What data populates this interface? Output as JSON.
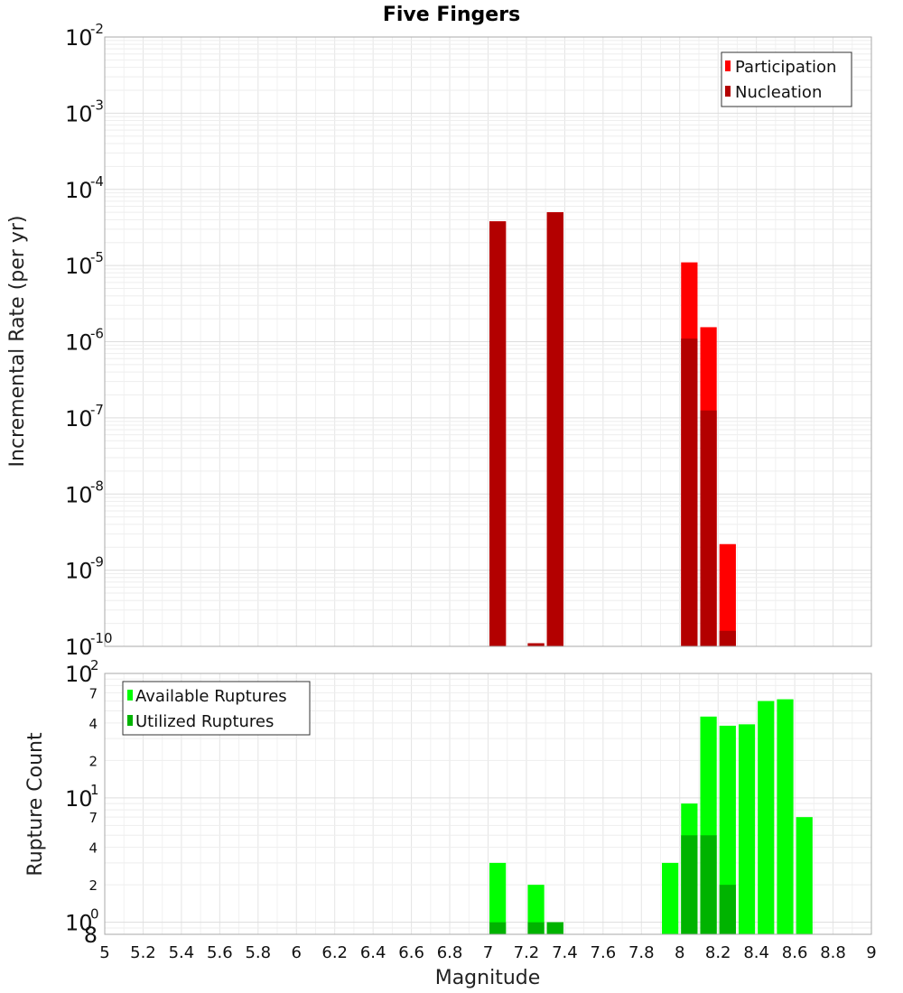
{
  "chart_title": "Five Fingers",
  "x_axis": {
    "label": "Magnitude",
    "range": [
      5,
      9
    ],
    "ticks": [
      5,
      5.2,
      5.4,
      5.6,
      5.8,
      6,
      6.2,
      6.4,
      6.6,
      6.8,
      7,
      7.2,
      7.4,
      7.6,
      7.8,
      8,
      8.2,
      8.4,
      8.6,
      8.8,
      9
    ],
    "tick_labels": [
      "5",
      "5.2",
      "5.4",
      "5.6",
      "5.8",
      "6",
      "6.2",
      "6.4",
      "6.6",
      "6.8",
      "7",
      "7.2",
      "7.4",
      "7.6",
      "7.8",
      "8",
      "8.2",
      "8.4",
      "8.6",
      "8.8",
      "9"
    ]
  },
  "chart_data": [
    {
      "type": "bar",
      "scale": "log",
      "ylabel": "Incremental Rate (per yr)",
      "ylim": [
        1e-10,
        0.01
      ],
      "grid": true,
      "legend_position": "top-right",
      "y_tick_exponents": [
        "-10",
        "-9",
        "-8",
        "-7",
        "-6",
        "-5",
        "-4",
        "-3",
        "-2"
      ],
      "y_tick_base": "10",
      "bin_width": 0.1,
      "series": [
        {
          "name": "Participation",
          "color": "#ff0000",
          "x": [
            7.05,
            7.25,
            7.35,
            8.05,
            8.15,
            8.25
          ],
          "values": [
            3.8e-05,
            1.1e-10,
            5e-05,
            1.1e-05,
            1.55e-06,
            2.2e-09
          ]
        },
        {
          "name": "Nucleation",
          "color": "#b30000",
          "x": [
            7.05,
            7.25,
            7.35,
            8.05,
            8.15,
            8.25
          ],
          "values": [
            3.8e-05,
            1.1e-10,
            5e-05,
            1.1e-06,
            1.25e-07,
            1.6e-10
          ]
        }
      ]
    },
    {
      "type": "bar",
      "scale": "log",
      "ylabel": "Rupture Count",
      "ylim": [
        0.8,
        100
      ],
      "grid": true,
      "legend_position": "top-left",
      "y_tick_base": "10",
      "y_major_exponents": [
        "0",
        "1",
        "2"
      ],
      "y_minor_labels": [
        "8",
        "2",
        "4",
        "7",
        "2",
        "4",
        "7"
      ],
      "bin_width": 0.1,
      "series": [
        {
          "name": "Available Ruptures",
          "color": "#00ff00",
          "x": [
            7.05,
            7.25,
            7.35,
            7.95,
            8.05,
            8.15,
            8.25,
            8.35,
            8.45,
            8.55,
            8.65
          ],
          "values": [
            3,
            2,
            1,
            3,
            9,
            45,
            38,
            39,
            60,
            62,
            7
          ]
        },
        {
          "name": "Utilized Ruptures",
          "color": "#00b300",
          "x": [
            7.05,
            7.25,
            7.35,
            8.05,
            8.15,
            8.25
          ],
          "values": [
            1,
            1,
            1,
            5,
            5,
            2
          ]
        }
      ]
    }
  ]
}
